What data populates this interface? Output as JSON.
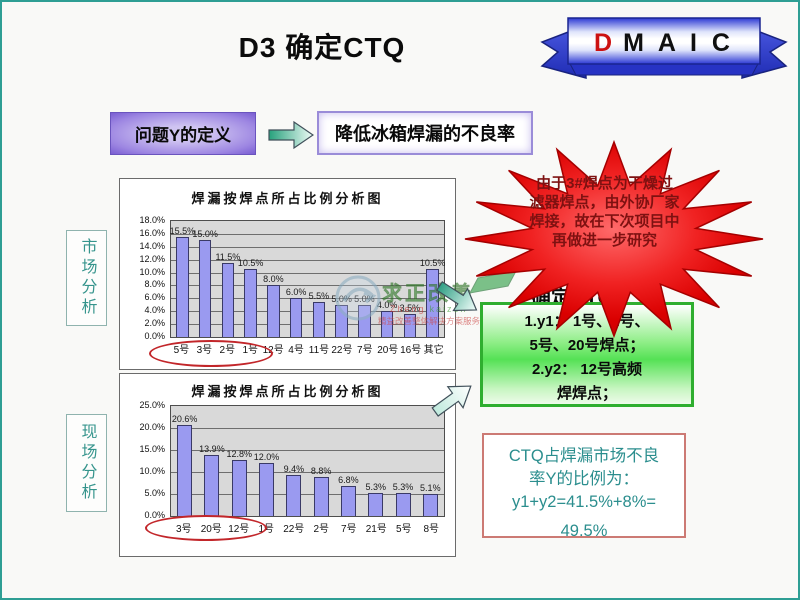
{
  "header": {
    "title": "D3 确定CTQ",
    "ribbon_d": "D",
    "ribbon_rest": "M A I C"
  },
  "definition": {
    "problem_label": "问题Y的定义",
    "goal_label": "降低冰箱焊漏的不良率"
  },
  "side_labels": {
    "market": "市场分析",
    "field": "现场分析"
  },
  "starburst": {
    "lines": [
      "由于3#焊点为干燥过",
      "滤器焊点，由外协厂家",
      "焊接，故在下次项目中",
      "再做进一步研究"
    ]
  },
  "ctq": {
    "heading": "确定CTQ",
    "items": [
      "1.y1： 1号、2号、",
      "5号、20号焊点；",
      "2.y2： 12号高频",
      "焊焊点；"
    ]
  },
  "ratio_box": {
    "lines": [
      "CTQ占焊漏市场不良",
      "率Y的比例为：",
      "y1+y2=41.5%+8%=",
      "49.5%"
    ]
  },
  "watermark": {
    "brand": "求正改善",
    "en_red": "Zheng",
    "en_green": "kaizen",
    "tagline": "精益改善整体解决方案服务"
  },
  "colors": {
    "slide_border": "#2E9E94",
    "bar_fill": "#9a9af0",
    "star_red": "#e01010",
    "ctq_green_border": "#2fae2f",
    "ratio_border": "#cc7a74",
    "ratio_text": "#2b8e8e",
    "ellipse_red": "#c2262a",
    "ribbon_blue": "#2b38d4"
  },
  "chart_data": [
    {
      "type": "bar",
      "title": "焊漏按焊点所占比例分析图",
      "categories": [
        "5号",
        "3号",
        "2号",
        "1号",
        "12号",
        "4号",
        "11号",
        "22号",
        "7号",
        "20号",
        "16号",
        "其它"
      ],
      "values": [
        15.5,
        15.0,
        11.5,
        10.5,
        8.0,
        6.0,
        5.5,
        5.0,
        5.0,
        4.0,
        3.5,
        10.5
      ],
      "labels": [
        "15.5%",
        "15.0%",
        "11.5%",
        "10.5%",
        "8.0%",
        "6.0%",
        "5.5%",
        "5.0%",
        "5.0%",
        "4.0%",
        "3.5%",
        "10.5%"
      ],
      "xlabel": "",
      "ylabel": "",
      "ylim": [
        0,
        18
      ],
      "ytick_step": 2,
      "grid": true,
      "legend": false,
      "circled_categories": [
        "5号",
        "3号",
        "2号",
        "1号",
        "12号"
      ]
    },
    {
      "type": "bar",
      "title": "焊漏按焊点所占比例分析图",
      "categories": [
        "3号",
        "20号",
        "12号",
        "1号",
        "22号",
        "2号",
        "7号",
        "21号",
        "5号",
        "8号"
      ],
      "values": [
        20.6,
        13.9,
        12.8,
        12.0,
        9.4,
        8.8,
        6.8,
        5.3,
        5.3,
        5.1
      ],
      "labels": [
        "20.6%",
        "13.9%",
        "12.8%",
        "12.0%",
        "9.4%",
        "8.8%",
        "6.8%",
        "5.3%",
        "5.3%",
        "5.1%"
      ],
      "xlabel": "",
      "ylabel": "",
      "ylim": [
        0,
        25
      ],
      "ytick_step": 5,
      "grid": true,
      "legend": false,
      "circled_categories": [
        "3号",
        "20号",
        "12号",
        "1号"
      ]
    }
  ]
}
